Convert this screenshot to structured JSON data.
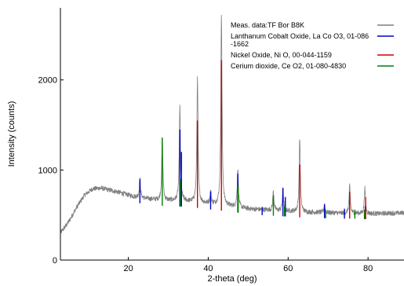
{
  "chart_data": {
    "type": "line",
    "title": "",
    "xlabel": "2-theta (deg)",
    "ylabel": "Intensity (counts)",
    "xlim": [
      3,
      89
    ],
    "ylim": [
      0,
      2800
    ],
    "x_ticks": [
      20,
      40,
      60,
      80
    ],
    "y_ticks": [
      0,
      1000,
      2000
    ],
    "grid": false,
    "legend_position": "top-right",
    "legend": [
      {
        "label_lines": [
          "Meas. data:TF Bor B8K"
        ],
        "color": "#7f7f7f"
      },
      {
        "label_lines": [
          "Lanthanum Cobalt Oxide, La Co O3, 01-086",
          "-1662"
        ],
        "color": "#0000cc"
      },
      {
        "label_lines": [
          "Nickel Oxide, Ni O, 00-044-1159"
        ],
        "color": "#d00000"
      },
      {
        "label_lines": [
          "Cerium dioxide, Ce O2, 01-080-4830"
        ],
        "color": "#008000"
      }
    ],
    "background_profile": {
      "x": [
        3,
        5,
        7,
        9,
        11,
        13,
        15,
        17,
        19,
        21,
        23,
        25,
        27,
        29,
        31,
        33,
        35,
        37,
        39,
        41,
        43,
        45,
        47,
        49,
        51,
        53,
        55,
        57,
        59,
        61,
        63,
        65,
        67,
        69,
        71,
        73,
        75,
        77,
        79,
        81,
        83,
        85,
        87,
        89
      ],
      "y": [
        300,
        420,
        580,
        720,
        790,
        800,
        780,
        760,
        735,
        710,
        690,
        680,
        670,
        660,
        660,
        655,
        650,
        640,
        630,
        620,
        610,
        600,
        590,
        575,
        565,
        560,
        555,
        550,
        545,
        540,
        535,
        530,
        530,
        525,
        525,
        520,
        520,
        520,
        515,
        515,
        515,
        520,
        520,
        525
      ]
    },
    "peaks": [
      {
        "x": 22.9,
        "height": 905,
        "phase": "Lanthanum Cobalt Oxide"
      },
      {
        "x": 28.5,
        "height": 1360,
        "phase": "Cerium dioxide"
      },
      {
        "x": 32.9,
        "height": 1710,
        "phase": "Lanthanum Cobalt Oxide"
      },
      {
        "x": 37.3,
        "height": 2010,
        "phase": "Nickel Oxide"
      },
      {
        "x": 40.6,
        "height": 760,
        "phase": "Lanthanum Cobalt Oxide"
      },
      {
        "x": 43.3,
        "height": 2720,
        "phase": "Nickel Oxide"
      },
      {
        "x": 47.4,
        "height": 1010,
        "phase": "Lanthanum Cobalt Oxide"
      },
      {
        "x": 56.3,
        "height": 760,
        "phase": "Cerium dioxide"
      },
      {
        "x": 58.7,
        "height": 800,
        "phase": "Lanthanum Cobalt Oxide"
      },
      {
        "x": 62.9,
        "height": 1350,
        "phase": "Nickel Oxide"
      },
      {
        "x": 69.1,
        "height": 620,
        "phase": "Lanthanum Cobalt Oxide"
      },
      {
        "x": 75.4,
        "height": 820,
        "phase": "Nickel Oxide"
      },
      {
        "x": 79.2,
        "height": 800,
        "phase": "Nickel Oxide"
      }
    ],
    "reference_lines": [
      {
        "phase": "Lanthanum Cobalt Oxide",
        "color": "#0000cc",
        "x": [
          22.9,
          32.9,
          33.3,
          40.6,
          47.4,
          53.5,
          58.7,
          59.3,
          69.1,
          74.1,
          79.3
        ],
        "top": [
          900,
          1450,
          1200,
          760,
          960,
          590,
          800,
          700,
          620,
          570,
          600
        ]
      },
      {
        "phase": "Nickel Oxide",
        "color": "#d00000",
        "x": [
          37.3,
          43.3,
          62.9,
          75.4,
          79.4
        ],
        "top": [
          1550,
          2220,
          1060,
          760,
          700
        ]
      },
      {
        "phase": "Cerium dioxide",
        "color": "#008000",
        "x": [
          28.5,
          33.1,
          47.5,
          56.3,
          59.1,
          69.4,
          76.7,
          79.1
        ],
        "top": [
          1360,
          900,
          820,
          720,
          600,
          560,
          560,
          560
        ]
      }
    ]
  }
}
